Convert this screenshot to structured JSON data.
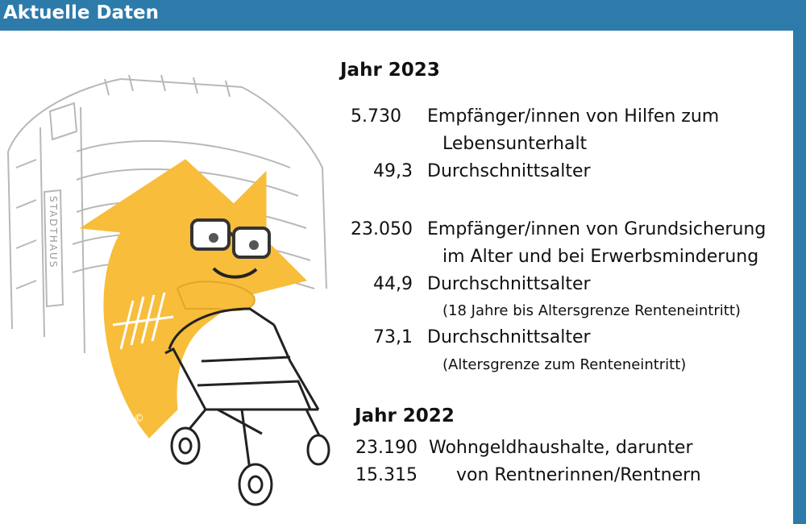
{
  "header": {
    "title": "Aktuelle Daten"
  },
  "illustration": {
    "building_sign": "STADTHAUS",
    "copyright": "©"
  },
  "year2023": {
    "heading": "Jahr 2023",
    "rows": [
      {
        "value": "5.730",
        "label": "Empfänger/innen von Hilfen zum",
        "label2": "Lebensunterhalt"
      },
      {
        "value": "49,3",
        "label": "Durchschnittsalter"
      },
      {
        "value": "23.050",
        "label": "Empfänger/innen von Grundsicherung",
        "label2": "im Alter und bei Erwerbsminderung"
      },
      {
        "value": "44,9",
        "label": "Durchschnittsalter",
        "note": "(18 Jahre bis Altersgrenze Renteneintritt)"
      },
      {
        "value": "73,1",
        "label": "Durchschnittsalter",
        "note": "(Altersgrenze zum Renteneintritt)"
      }
    ]
  },
  "year2022": {
    "heading": "Jahr 2022",
    "rows": [
      {
        "value": "23.190",
        "label": "Wohngeldhaushalte, darunter"
      },
      {
        "value": "15.315",
        "label": "von Rentnerinnen/Rentnern"
      }
    ]
  }
}
